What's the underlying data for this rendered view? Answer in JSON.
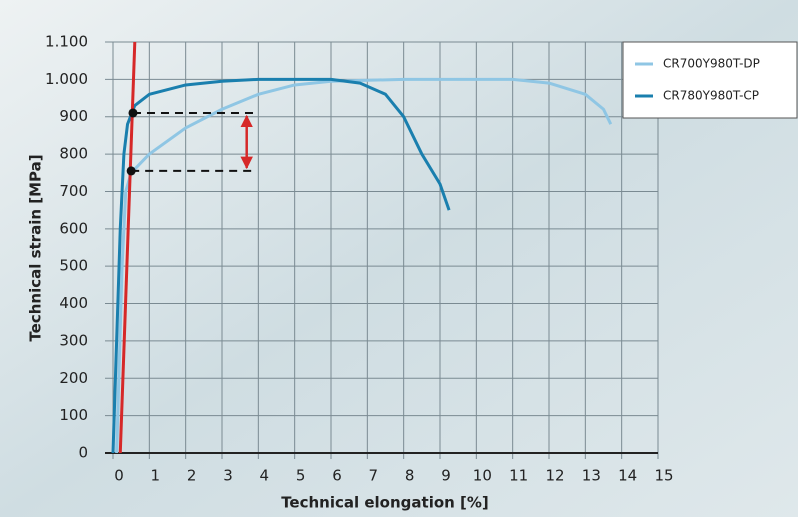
{
  "chart_data": {
    "type": "line",
    "x_label": "Technical elongation [%]",
    "y_label": "Technical strain [MPa]",
    "xlim": [
      0,
      15
    ],
    "ylim": [
      0,
      1100
    ],
    "xticks": [
      0,
      1,
      2,
      3,
      4,
      5,
      6,
      7,
      8,
      9,
      10,
      11,
      12,
      13,
      14,
      15
    ],
    "yticks": [
      0,
      100,
      200,
      300,
      400,
      500,
      600,
      700,
      800,
      900,
      {
        "value": 1000,
        "label": "1.000"
      },
      {
        "value": 1100,
        "label": "1.100"
      }
    ],
    "grid": true,
    "legend": "top-right",
    "series": [
      {
        "name": "CR700Y980T-DP",
        "color": "#8fc6e4",
        "x": [
          0.1,
          0.25,
          0.35,
          0.5,
          1,
          2,
          3,
          4,
          5,
          6,
          8,
          11,
          12,
          13,
          13.5,
          13.7
        ],
        "values": [
          0,
          500,
          700,
          750,
          800,
          870,
          920,
          960,
          985,
          995,
          1000,
          1000,
          990,
          960,
          920,
          880
        ]
      },
      {
        "name": "CR780Y980T-CP",
        "color": "#1a7fae",
        "x": [
          0,
          0.2,
          0.3,
          0.4,
          0.6,
          1,
          2,
          3,
          4,
          6,
          6.8,
          7.5,
          8,
          8.5,
          9,
          9.25
        ],
        "values": [
          0,
          600,
          800,
          880,
          930,
          960,
          985,
          995,
          1000,
          1000,
          990,
          960,
          900,
          800,
          720,
          650
        ]
      }
    ],
    "offset_line": {
      "color": "#d62828",
      "x": [
        0.2,
        0.6
      ],
      "values": [
        0,
        1100
      ]
    },
    "markers": [
      {
        "x": 0.55,
        "y": 910
      },
      {
        "x": 0.5,
        "y": 755
      }
    ],
    "dash_end_x": 3.9
  }
}
